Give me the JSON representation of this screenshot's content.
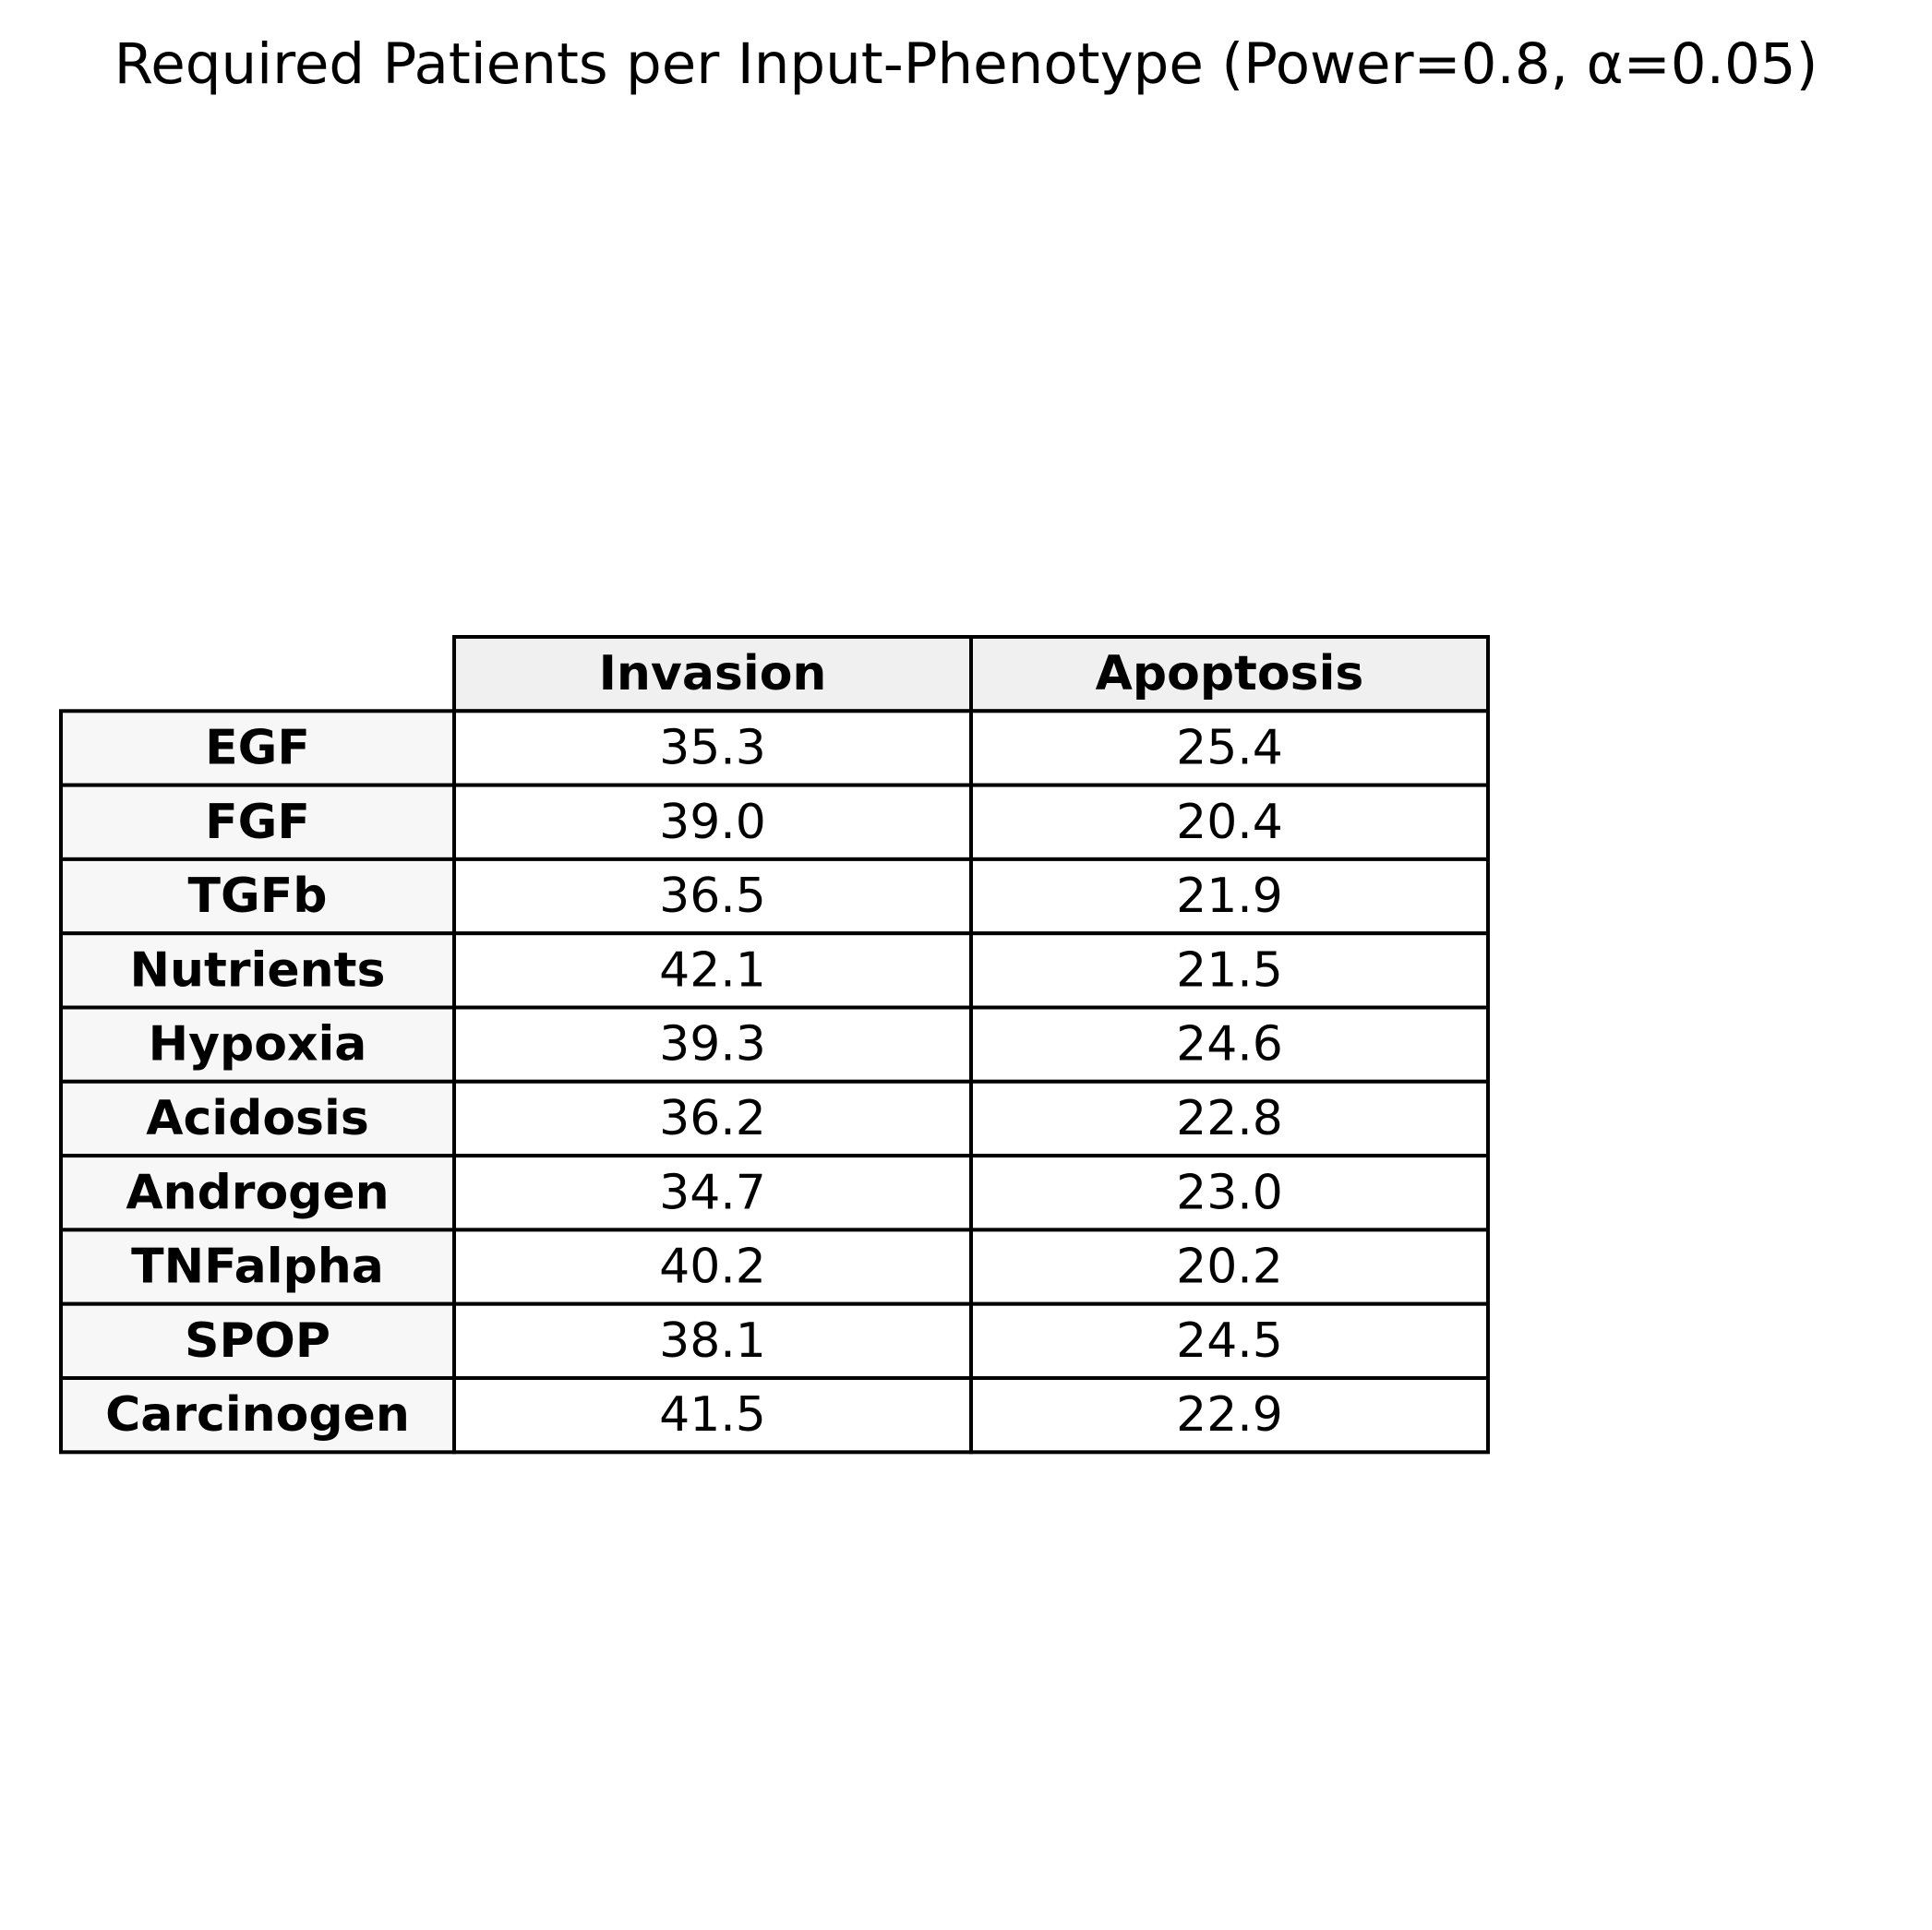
{
  "chart_data": {
    "type": "table",
    "title": "Required Patients per Input-Phenotype (Power=0.8, α=0.05)",
    "columns": [
      "Invasion",
      "Apoptosis"
    ],
    "rows": [
      {
        "label": "EGF",
        "values": [
          "35.3",
          "25.4"
        ]
      },
      {
        "label": "FGF",
        "values": [
          "39.0",
          "20.4"
        ]
      },
      {
        "label": "TGFb",
        "values": [
          "36.5",
          "21.9"
        ]
      },
      {
        "label": "Nutrients",
        "values": [
          "42.1",
          "21.5"
        ]
      },
      {
        "label": "Hypoxia",
        "values": [
          "39.3",
          "24.6"
        ]
      },
      {
        "label": "Acidosis",
        "values": [
          "36.2",
          "22.8"
        ]
      },
      {
        "label": "Androgen",
        "values": [
          "34.7",
          "23.0"
        ]
      },
      {
        "label": "TNFalpha",
        "values": [
          "40.2",
          "20.2"
        ]
      },
      {
        "label": "SPOP",
        "values": [
          "38.1",
          "24.5"
        ]
      },
      {
        "label": "Carcinogen",
        "values": [
          "41.5",
          "22.9"
        ]
      }
    ]
  },
  "colors": {
    "header_fill": "#f0f0f0",
    "row_label_fill": "#f7f7f7",
    "cell_fill": "#ffffff",
    "border": "#000000",
    "text": "#000000"
  }
}
